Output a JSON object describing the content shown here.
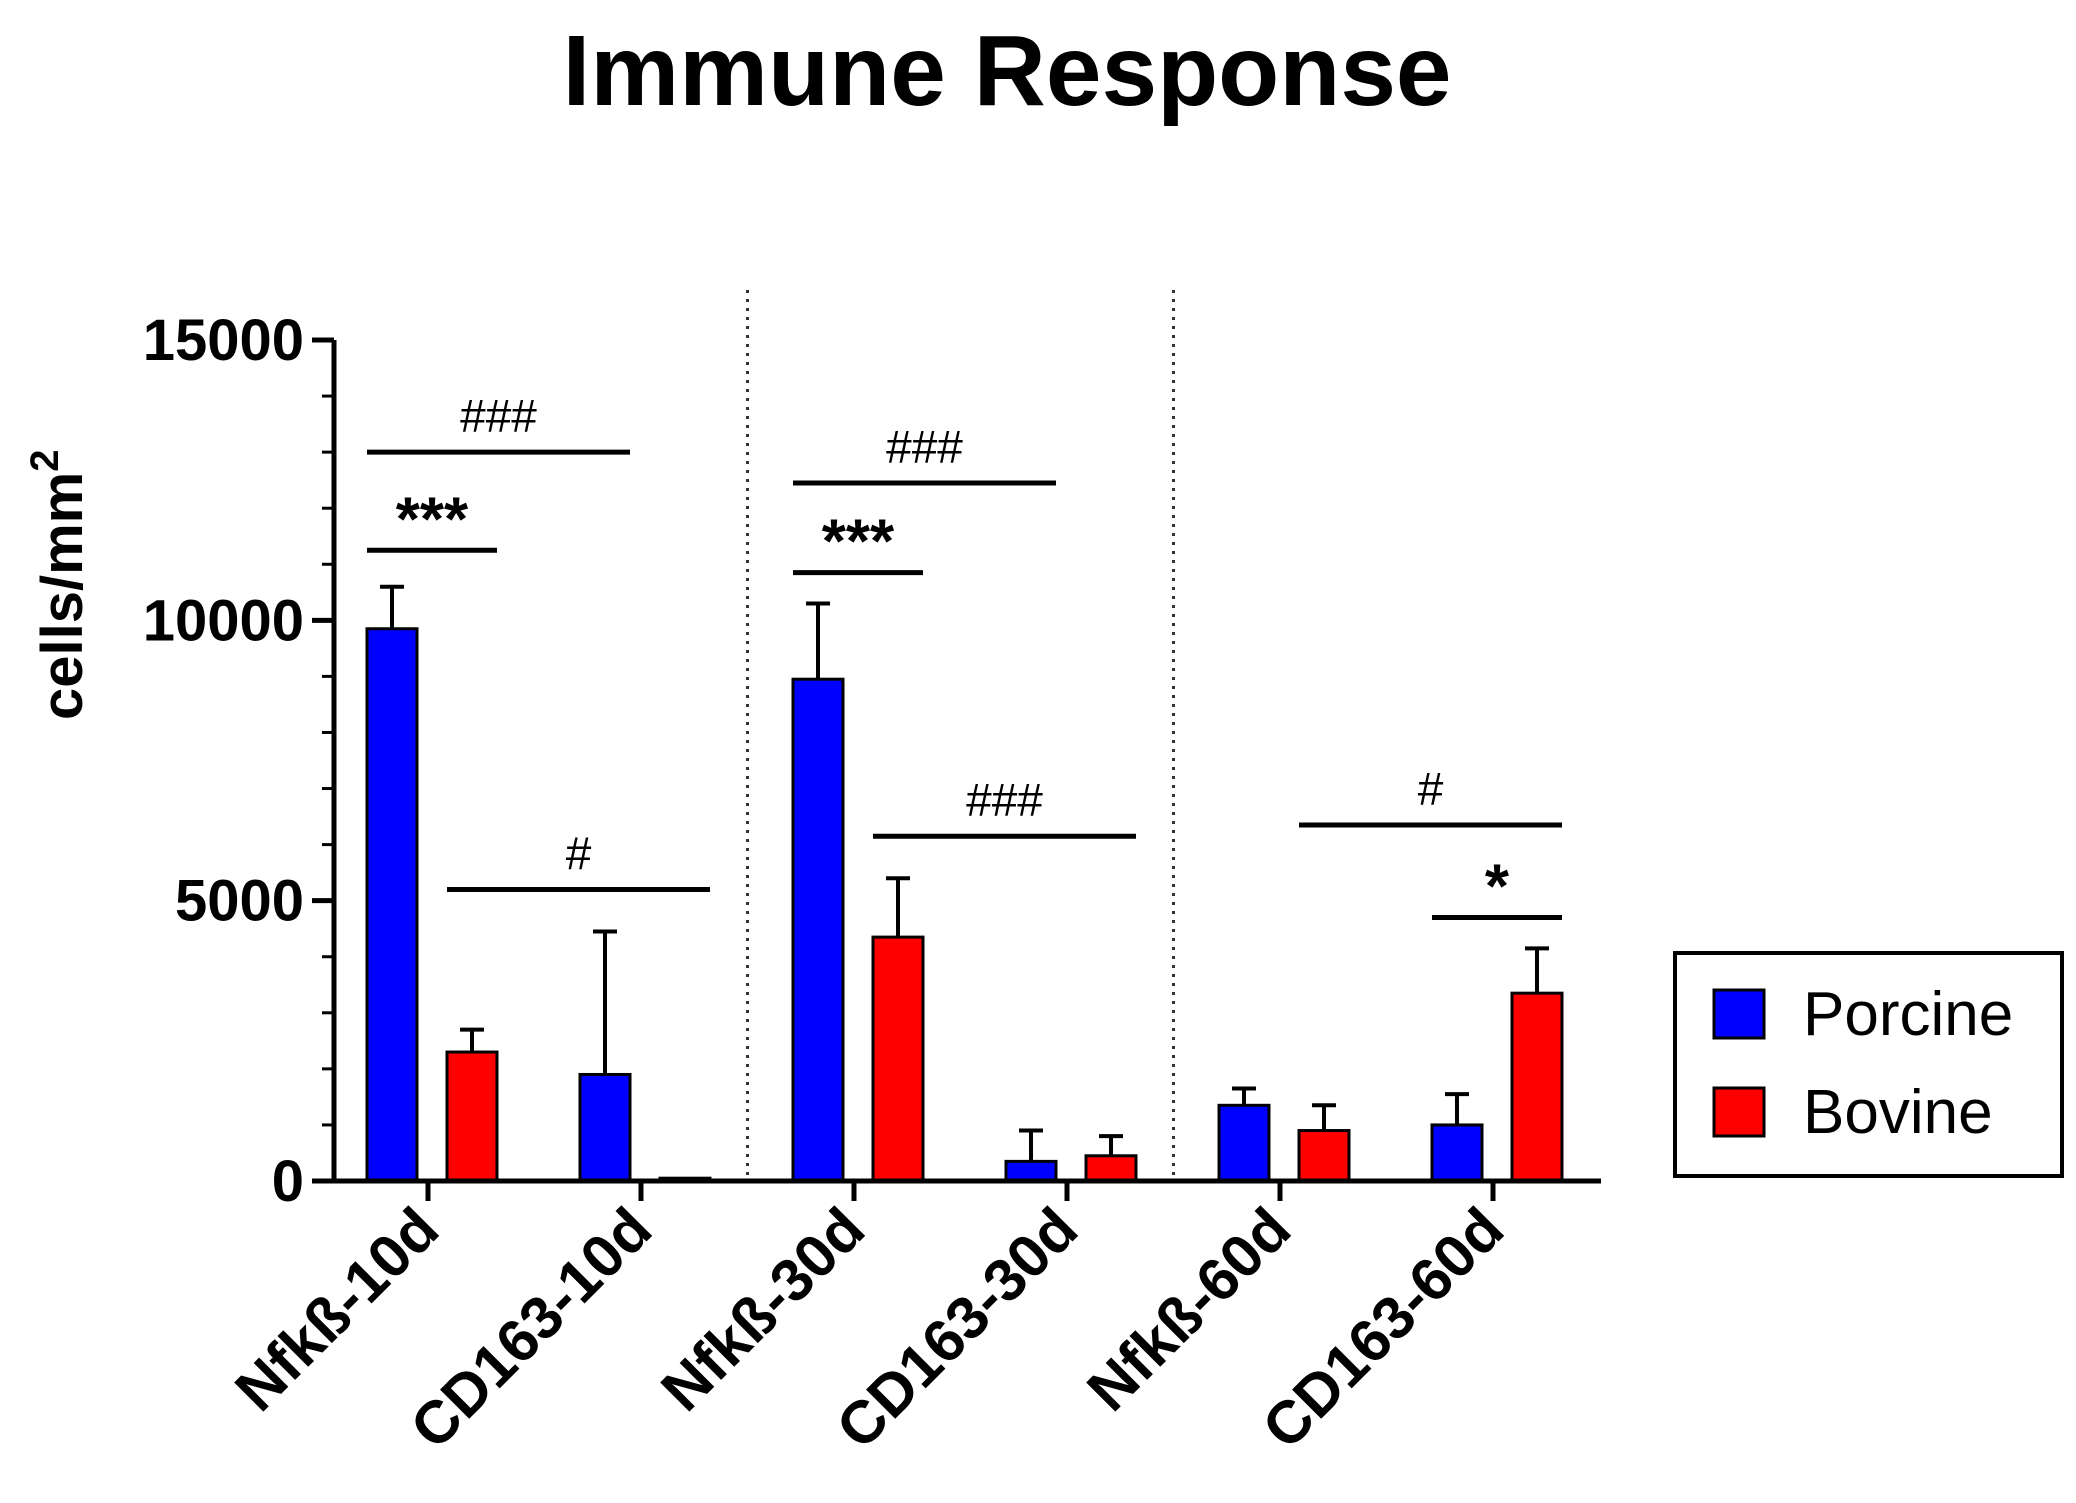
{
  "chart_data": {
    "type": "bar",
    "title": "Immune Response",
    "xlabel": "",
    "ylabel": "cells/mm",
    "ylabel_superscript": "2",
    "ylim": [
      0,
      15000
    ],
    "yticks": [
      0,
      5000,
      10000,
      15000
    ],
    "ytick_labels": [
      "0",
      "5000",
      "10000",
      "15000"
    ],
    "categories": [
      "Nfkß-10d",
      "CD163-10d",
      "Nfkß-30d",
      "CD163-30d",
      "Nfkß-60d",
      "CD163-60d"
    ],
    "series": [
      {
        "name": "Porcine",
        "color": "#0000ff",
        "values": [
          9850,
          1900,
          8950,
          350,
          1350,
          1000
        ],
        "errors": [
          750,
          2550,
          1350,
          550,
          300,
          550
        ]
      },
      {
        "name": "Bovine",
        "color": "#ff0000",
        "values": [
          2300,
          50,
          4350,
          450,
          900,
          3350
        ],
        "errors": [
          400,
          0,
          1050,
          350,
          450,
          800
        ]
      }
    ],
    "legend": {
      "position": "right",
      "labels": [
        "Porcine",
        "Bovine"
      ]
    },
    "group_separators": "dotted lines between 10d, 30d and 60d groups",
    "annotations": [
      {
        "text": "###",
        "kind": "hash",
        "from": {
          "category": 0,
          "series": 0
        },
        "to": {
          "category": 1,
          "series": 0
        },
        "y": 13000
      },
      {
        "text": "***",
        "kind": "star",
        "from": {
          "category": 0,
          "series": 0
        },
        "to": {
          "category": 0,
          "series": 1
        },
        "y": 11250
      },
      {
        "text": "#",
        "kind": "hash",
        "from": {
          "category": 0,
          "series": 1
        },
        "to": {
          "category": 1,
          "series": 1
        },
        "y": 5200
      },
      {
        "text": "###",
        "kind": "hash",
        "from": {
          "category": 2,
          "series": 0
        },
        "to": {
          "category": 3,
          "series": 0
        },
        "y": 12450
      },
      {
        "text": "***",
        "kind": "star",
        "from": {
          "category": 2,
          "series": 0
        },
        "to": {
          "category": 2,
          "series": 1
        },
        "y": 10850
      },
      {
        "text": "###",
        "kind": "hash",
        "from": {
          "category": 2,
          "series": 1
        },
        "to": {
          "category": 3,
          "series": 1
        },
        "y": 6150
      },
      {
        "text": "#",
        "kind": "hash",
        "from": {
          "category": 4,
          "series": 1
        },
        "to": {
          "category": 5,
          "series": 1
        },
        "y": 6350
      },
      {
        "text": "*",
        "kind": "star",
        "from": {
          "category": 5,
          "series": 0
        },
        "to": {
          "category": 5,
          "series": 1
        },
        "y": 4700
      }
    ]
  }
}
